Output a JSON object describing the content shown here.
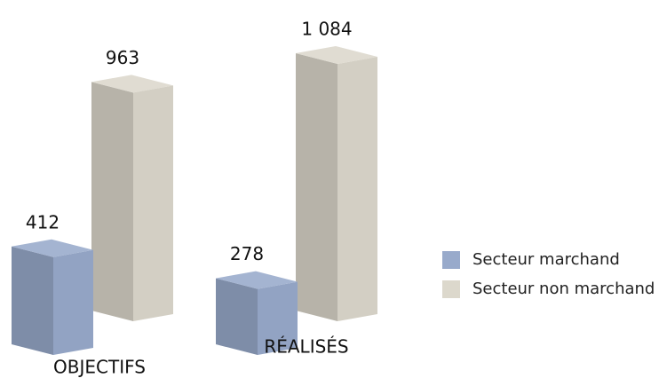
{
  "chart_data": {
    "type": "bar3d",
    "categories": [
      "OBJECTIFS",
      "RÉALISÉS"
    ],
    "series": [
      {
        "name": "Secteur marchand",
        "color": "#98aacb",
        "values": [
          412,
          278
        ]
      },
      {
        "name": "Secteur non marchand",
        "color": "#dcd8cc",
        "values": [
          963,
          1084
        ],
        "value_labels": [
          "963",
          "1 084"
        ]
      }
    ]
  }
}
